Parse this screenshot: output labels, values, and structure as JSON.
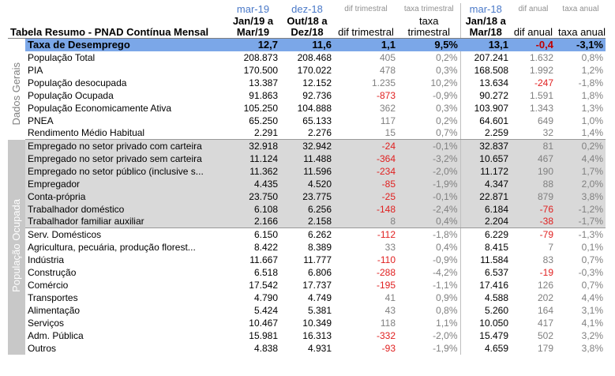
{
  "header": {
    "periods": [
      "mar-19",
      "dez-18",
      "dif trimestral",
      "taxa trimestral",
      "mar-18",
      "dif anual",
      "taxa anual"
    ],
    "title": "Tabela Resumo - PNAD Contínua Mensal",
    "columns": [
      "Jan/19 a Mar/19",
      "Out/18 a Dez/18",
      "dif trimestral",
      "taxa trimestral",
      "Jan/18 a Mar/18",
      "dif anual",
      "taxa anual"
    ]
  },
  "rate_row": {
    "label": "Taxa de Desemprego",
    "values": [
      "12,7",
      "11,6",
      "1,1",
      "9,5%",
      "13,1",
      "-0,4",
      "-3,1%"
    ]
  },
  "groups": {
    "dados_gerais": "Dados Gerais",
    "populacao_ocupada": "População Ocupada"
  },
  "rows": [
    {
      "label": "População Total",
      "values": [
        "208.873",
        "208.468",
        "405",
        "0,2%",
        "207.241",
        "1.632",
        "0,8%"
      ]
    },
    {
      "label": "PIA",
      "values": [
        "170.500",
        "170.022",
        "478",
        "0,3%",
        "168.508",
        "1.992",
        "1,2%"
      ]
    },
    {
      "label": "População desocupada",
      "values": [
        "13.387",
        "12.152",
        "1.235",
        "10,2%",
        "13.634",
        "-247",
        "-1,8%"
      ]
    },
    {
      "label": "População Ocupada",
      "values": [
        "91.863",
        "92.736",
        "-873",
        "-0,9%",
        "90.272",
        "1.591",
        "1,8%"
      ]
    },
    {
      "label": "População Economicamente Ativa",
      "values": [
        "105.250",
        "104.888",
        "362",
        "0,3%",
        "103.907",
        "1.343",
        "1,3%"
      ]
    },
    {
      "label": "PNEA",
      "values": [
        "65.250",
        "65.133",
        "117",
        "0,2%",
        "64.601",
        "649",
        "1,0%"
      ]
    },
    {
      "label": "Rendimento Médio Habitual",
      "values": [
        "2.291",
        "2.276",
        "15",
        "0,7%",
        "2.259",
        "32",
        "1,4%"
      ]
    },
    {
      "label": "Empregado no setor privado com carteira",
      "values": [
        "32.918",
        "32.942",
        "-24",
        "-0,1%",
        "32.837",
        "81",
        "0,2%"
      ]
    },
    {
      "label": "Empregado no setor privado sem carteira",
      "values": [
        "11.124",
        "11.488",
        "-364",
        "-3,2%",
        "10.657",
        "467",
        "4,4%"
      ]
    },
    {
      "label": "Empregado no setor público (inclusive s...",
      "values": [
        "11.362",
        "11.596",
        "-234",
        "-2,0%",
        "11.172",
        "190",
        "1,7%"
      ]
    },
    {
      "label": "Empregador",
      "values": [
        "4.435",
        "4.520",
        "-85",
        "-1,9%",
        "4.347",
        "88",
        "2,0%"
      ]
    },
    {
      "label": "Conta-própria",
      "values": [
        "23.750",
        "23.775",
        "-25",
        "-0,1%",
        "22.871",
        "879",
        "3,8%"
      ]
    },
    {
      "label": "Trabalhador doméstico",
      "values": [
        "6.108",
        "6.256",
        "-148",
        "-2,4%",
        "6.184",
        "-76",
        "-1,2%"
      ]
    },
    {
      "label": "Trabalhador familiar auxiliar",
      "values": [
        "2.166",
        "2.158",
        "8",
        "0,4%",
        "2.204",
        "-38",
        "-1,7%"
      ]
    },
    {
      "label": "Serv. Domésticos",
      "values": [
        "6.150",
        "6.262",
        "-112",
        "-1,8%",
        "6.229",
        "-79",
        "-1,3%"
      ]
    },
    {
      "label": "Agricultura, pecuária, produção florest...",
      "values": [
        "8.422",
        "8.389",
        "33",
        "0,4%",
        "8.415",
        "7",
        "0,1%"
      ]
    },
    {
      "label": "Indústria",
      "values": [
        "11.667",
        "11.777",
        "-110",
        "-0,9%",
        "11.584",
        "83",
        "0,7%"
      ]
    },
    {
      "label": "Construção",
      "values": [
        "6.518",
        "6.806",
        "-288",
        "-4,2%",
        "6.537",
        "-19",
        "-0,3%"
      ]
    },
    {
      "label": "Comércio",
      "values": [
        "17.542",
        "17.737",
        "-195",
        "-1,1%",
        "17.416",
        "126",
        "0,7%"
      ]
    },
    {
      "label": "Transportes",
      "values": [
        "4.790",
        "4.749",
        "41",
        "0,9%",
        "4.588",
        "202",
        "4,4%"
      ]
    },
    {
      "label": "Alimentação",
      "values": [
        "5.424",
        "5.381",
        "43",
        "0,8%",
        "5.260",
        "164",
        "3,1%"
      ]
    },
    {
      "label": "Serviços",
      "values": [
        "10.467",
        "10.349",
        "118",
        "1,1%",
        "10.050",
        "417",
        "4,1%"
      ]
    },
    {
      "label": "Adm. Pública",
      "values": [
        "15.981",
        "16.313",
        "-332",
        "-2,0%",
        "15.479",
        "502",
        "3,2%"
      ]
    },
    {
      "label": "Outros",
      "values": [
        "4.838",
        "4.931",
        "-93",
        "-1,9%",
        "4.659",
        "179",
        "3,8%"
      ]
    }
  ],
  "colors": {
    "rate_row_bg": "#7ba7e8",
    "negative": "#e02020",
    "grey_band": "#d9d9d9",
    "period_header": "#4a79c8"
  }
}
